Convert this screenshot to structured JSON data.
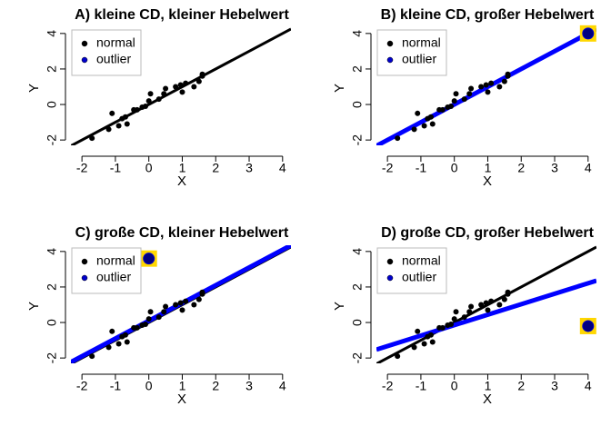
{
  "chart_data": [
    {
      "type": "scatter",
      "title": "A)  kleine CD, kleiner Hebelwert",
      "xlabel": "X",
      "ylabel": "Y",
      "xlim": [
        -2.33,
        4.25
      ],
      "ylim": [
        -2.3,
        4.35
      ],
      "xticks": [
        -2,
        -1,
        0,
        1,
        2,
        3,
        4
      ],
      "yticks": [
        -2,
        0,
        2,
        4
      ],
      "legend": "topleft",
      "highlight": "#ffd700",
      "series": [
        {
          "name": "normal",
          "color": "#000000",
          "x": [
            -1.7,
            -1.2,
            -1.1,
            -0.9,
            -0.8,
            -0.7,
            -0.65,
            -0.45,
            -0.35,
            -0.2,
            -0.1,
            0,
            0.05,
            0.3,
            0.45,
            0.5,
            0.8,
            0.95,
            1.0,
            1.1,
            1.35,
            1.5,
            1.6,
            1.6
          ],
          "values": [
            -1.9,
            -1.4,
            -0.5,
            -1.2,
            -0.8,
            -0.7,
            -1.1,
            -0.3,
            -0.3,
            -0.15,
            -0.1,
            0.2,
            0.6,
            0.3,
            0.6,
            0.9,
            1.0,
            1.1,
            0.7,
            1.2,
            1.0,
            1.3,
            1.6,
            1.7
          ]
        },
        {
          "name": "outlier",
          "color": "#0000cd",
          "x": [],
          "values": []
        }
      ],
      "fits": [
        {
          "color": "#000000",
          "intercept": 0,
          "slope": 1
        }
      ]
    },
    {
      "type": "scatter",
      "title": "B)  kleine CD, großer Hebelwert",
      "xlabel": "X",
      "ylabel": "Y",
      "xlim": [
        -2.33,
        4.25
      ],
      "ylim": [
        -2.3,
        4.35
      ],
      "xticks": [
        -2,
        -1,
        0,
        1,
        2,
        3,
        4
      ],
      "yticks": [
        -2,
        0,
        2,
        4
      ],
      "legend": "topleft",
      "highlight": "#ffd700",
      "series": [
        {
          "name": "normal",
          "color": "#000000",
          "x": [
            -1.7,
            -1.2,
            -1.1,
            -0.9,
            -0.8,
            -0.7,
            -0.65,
            -0.45,
            -0.35,
            -0.2,
            -0.1,
            0,
            0.05,
            0.3,
            0.45,
            0.5,
            0.8,
            0.95,
            1.0,
            1.1,
            1.35,
            1.5,
            1.6,
            1.6
          ],
          "values": [
            -1.9,
            -1.4,
            -0.5,
            -1.2,
            -0.8,
            -0.7,
            -1.1,
            -0.3,
            -0.3,
            -0.15,
            -0.1,
            0.2,
            0.6,
            0.3,
            0.6,
            0.9,
            1.0,
            1.1,
            0.7,
            1.2,
            1.0,
            1.3,
            1.6,
            1.7
          ]
        },
        {
          "name": "outlier",
          "color": "#0000cd",
          "x": [
            4
          ],
          "values": [
            4
          ]
        }
      ],
      "fits": [
        {
          "color": "#000000",
          "intercept": 0,
          "slope": 1
        },
        {
          "color": "#0000ff",
          "intercept": 0,
          "slope": 1
        }
      ]
    },
    {
      "type": "scatter",
      "title": "C)  große CD, kleiner Hebelwert",
      "xlabel": "X",
      "ylabel": "Y",
      "xlim": [
        -2.33,
        4.25
      ],
      "ylim": [
        -2.3,
        4.35
      ],
      "xticks": [
        -2,
        -1,
        0,
        1,
        2,
        3,
        4
      ],
      "yticks": [
        -2,
        0,
        2,
        4
      ],
      "legend": "topleft",
      "highlight": "#ffd700",
      "series": [
        {
          "name": "normal",
          "color": "#000000",
          "x": [
            -1.7,
            -1.2,
            -1.1,
            -0.9,
            -0.8,
            -0.7,
            -0.65,
            -0.45,
            -0.35,
            -0.2,
            -0.1,
            0,
            0.05,
            0.3,
            0.45,
            0.5,
            0.8,
            0.95,
            1.0,
            1.1,
            1.35,
            1.5,
            1.6,
            1.6
          ],
          "values": [
            -1.9,
            -1.4,
            -0.5,
            -1.2,
            -0.8,
            -0.7,
            -1.1,
            -0.3,
            -0.3,
            -0.15,
            -0.1,
            0.2,
            0.6,
            0.3,
            0.6,
            0.9,
            1.0,
            1.1,
            0.7,
            1.2,
            1.0,
            1.3,
            1.6,
            1.7
          ]
        },
        {
          "name": "outlier",
          "color": "#0000cd",
          "x": [
            0
          ],
          "values": [
            3.6
          ]
        }
      ],
      "fits": [
        {
          "color": "#000000",
          "intercept": 0,
          "slope": 1
        },
        {
          "color": "#0000ff",
          "intercept": 0.1,
          "slope": 1
        }
      ]
    },
    {
      "type": "scatter",
      "title": "D)  große CD, großer Hebelwert",
      "xlabel": "X",
      "ylabel": "Y",
      "xlim": [
        -2.33,
        4.25
      ],
      "ylim": [
        -2.3,
        4.35
      ],
      "xticks": [
        -2,
        -1,
        0,
        1,
        2,
        3,
        4
      ],
      "yticks": [
        -2,
        0,
        2,
        4
      ],
      "legend": "topleft",
      "highlight": "#ffd700",
      "series": [
        {
          "name": "normal",
          "color": "#000000",
          "x": [
            -1.7,
            -1.2,
            -1.1,
            -0.9,
            -0.8,
            -0.7,
            -0.65,
            -0.45,
            -0.35,
            -0.2,
            -0.1,
            0,
            0.05,
            0.3,
            0.45,
            0.5,
            0.8,
            0.95,
            1.0,
            1.1,
            1.35,
            1.5,
            1.6,
            1.6
          ],
          "values": [
            -1.9,
            -1.4,
            -0.5,
            -1.2,
            -0.8,
            -0.7,
            -1.1,
            -0.3,
            -0.3,
            -0.15,
            -0.1,
            0.2,
            0.6,
            0.3,
            0.6,
            0.9,
            1.0,
            1.1,
            0.7,
            1.2,
            1.0,
            1.3,
            1.6,
            1.7
          ]
        },
        {
          "name": "outlier",
          "color": "#0000cd",
          "x": [
            4
          ],
          "values": [
            -0.2
          ]
        }
      ],
      "fits": [
        {
          "color": "#000000",
          "intercept": 0,
          "slope": 1
        },
        {
          "color": "#0000ff",
          "intercept": -0.15,
          "slope": 0.59
        }
      ]
    }
  ]
}
